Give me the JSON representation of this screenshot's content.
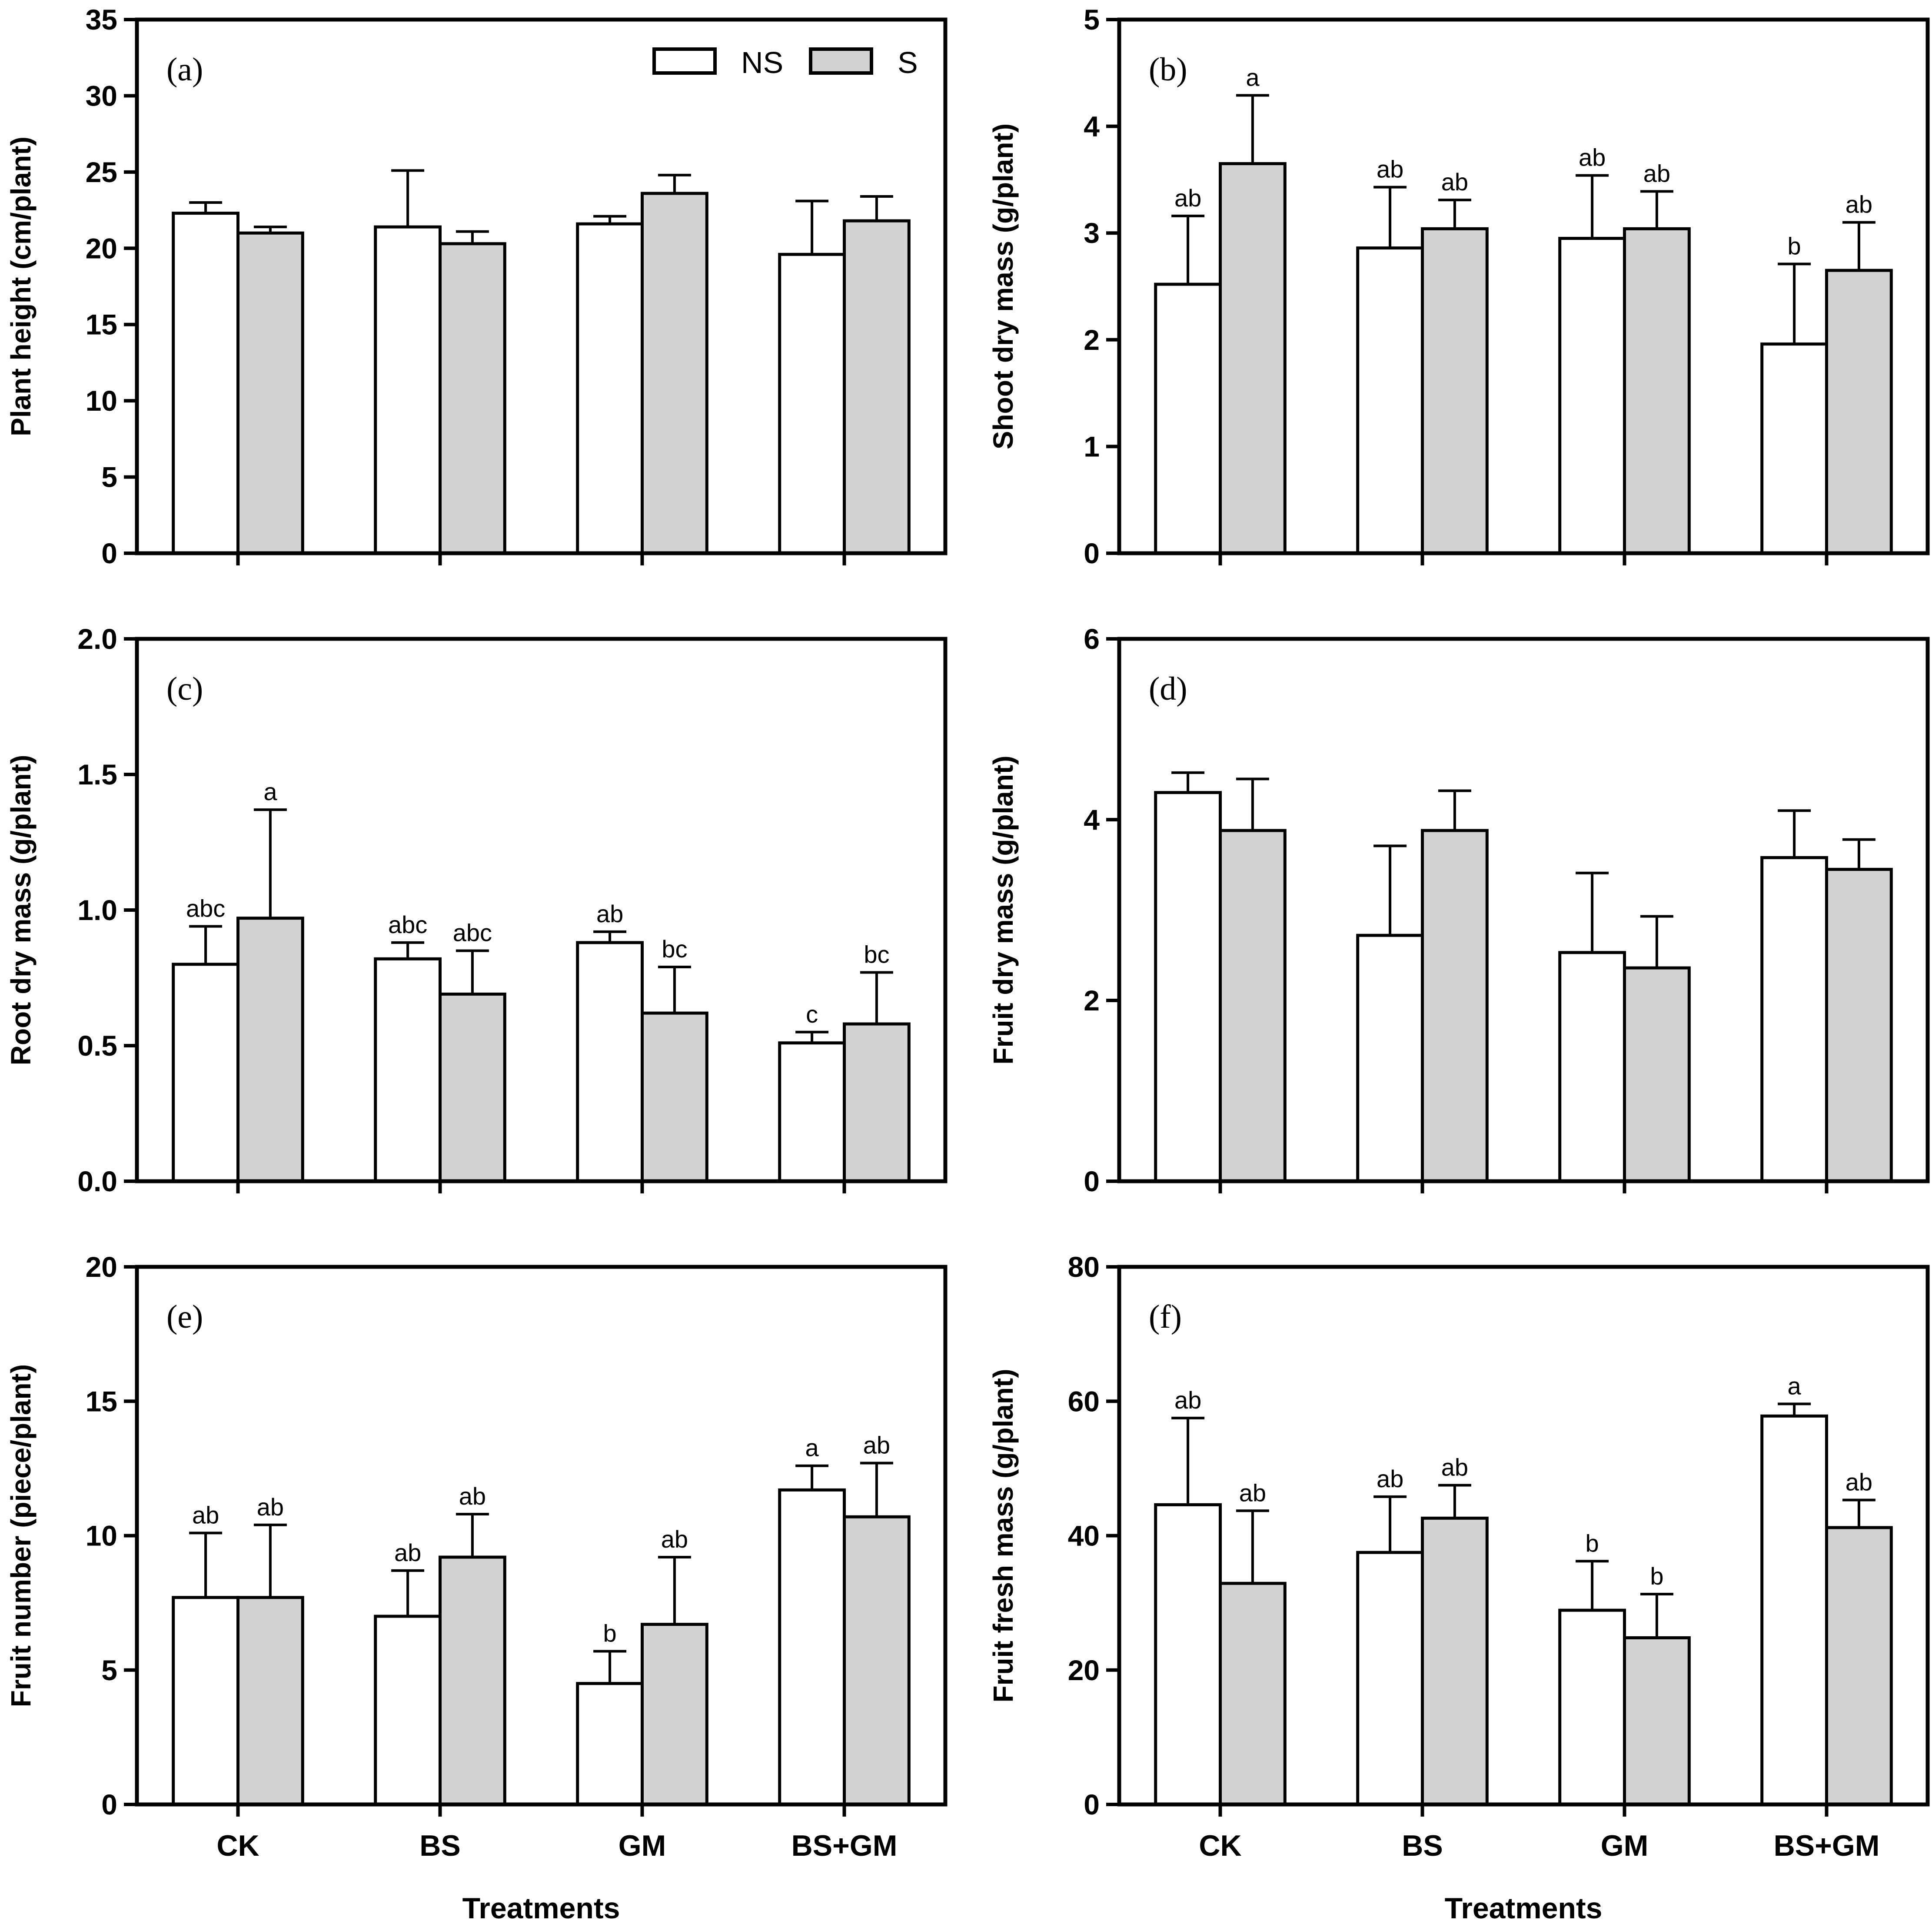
{
  "colors": {
    "ns_fill": "#ffffff",
    "s_fill": "#d3d3d3",
    "stroke": "#000000"
  },
  "legend": {
    "ns": "NS",
    "s": "S"
  },
  "chart_data": [
    {
      "type": "bar",
      "panel": "(a)",
      "categories": [
        "CK",
        "BS",
        "GM",
        "BS+GM"
      ],
      "ylabel": "Plant height (cm/plant)",
      "xlabel": "",
      "ylim": [
        0,
        35
      ],
      "yticks": [
        "0",
        "5",
        "10",
        "15",
        "20",
        "25",
        "30",
        "35"
      ],
      "show_xticks": false,
      "series": [
        {
          "name": "NS",
          "values": [
            22.3,
            21.4,
            21.6,
            19.6
          ],
          "errors": [
            0.7,
            3.7,
            0.5,
            3.5
          ],
          "labels": [
            "",
            "",
            "",
            ""
          ]
        },
        {
          "name": "S",
          "values": [
            21.0,
            20.3,
            23.6,
            21.8
          ],
          "errors": [
            0.4,
            0.8,
            1.2,
            1.6
          ],
          "labels": [
            "",
            "",
            "",
            ""
          ]
        }
      ]
    },
    {
      "type": "bar",
      "panel": "(b)",
      "categories": [
        "CK",
        "BS",
        "GM",
        "BS+GM"
      ],
      "ylabel": "Shoot dry mass (g/plant)",
      "xlabel": "",
      "ylim": [
        0,
        5
      ],
      "yticks": [
        "0",
        "1",
        "2",
        "3",
        "4",
        "5"
      ],
      "show_xticks": false,
      "series": [
        {
          "name": "NS",
          "values": [
            2.52,
            2.86,
            2.95,
            1.96
          ],
          "errors": [
            0.64,
            0.57,
            0.59,
            0.75
          ],
          "labels": [
            "ab",
            "ab",
            "ab",
            "b"
          ]
        },
        {
          "name": "S",
          "values": [
            3.65,
            3.04,
            3.04,
            2.65
          ],
          "errors": [
            0.64,
            0.27,
            0.35,
            0.45
          ],
          "labels": [
            "a",
            "ab",
            "ab",
            "ab"
          ]
        }
      ]
    },
    {
      "type": "bar",
      "panel": "(c)",
      "categories": [
        "CK",
        "BS",
        "GM",
        "BS+GM"
      ],
      "ylabel": "Root dry mass (g/plant)",
      "xlabel": "",
      "ylim": [
        0,
        2.0
      ],
      "yticks": [
        "0.0",
        "0.5",
        "1.0",
        "1.5",
        "2.0"
      ],
      "show_xticks": false,
      "series": [
        {
          "name": "NS",
          "values": [
            0.8,
            0.82,
            0.88,
            0.51
          ],
          "errors": [
            0.14,
            0.06,
            0.04,
            0.04
          ],
          "labels": [
            "abc",
            "abc",
            "ab",
            "c"
          ]
        },
        {
          "name": "S",
          "values": [
            0.97,
            0.69,
            0.62,
            0.58
          ],
          "errors": [
            0.4,
            0.16,
            0.17,
            0.19
          ],
          "labels": [
            "a",
            "abc",
            "bc",
            "bc"
          ]
        }
      ]
    },
    {
      "type": "bar",
      "panel": "(d)",
      "categories": [
        "CK",
        "BS",
        "GM",
        "BS+GM"
      ],
      "ylabel": "Fruit dry mass (g/plant)",
      "xlabel": "",
      "ylim": [
        0,
        6
      ],
      "yticks": [
        "0",
        "2",
        "4",
        "6"
      ],
      "show_xticks": false,
      "series": [
        {
          "name": "NS",
          "values": [
            4.3,
            2.72,
            2.53,
            3.58
          ],
          "errors": [
            0.22,
            0.99,
            0.88,
            0.52
          ],
          "labels": [
            "",
            "",
            "",
            ""
          ]
        },
        {
          "name": "S",
          "values": [
            3.88,
            3.88,
            2.36,
            3.45
          ],
          "errors": [
            0.57,
            0.44,
            0.57,
            0.33
          ],
          "labels": [
            "",
            "",
            "",
            ""
          ]
        }
      ]
    },
    {
      "type": "bar",
      "panel": "(e)",
      "categories": [
        "CK",
        "BS",
        "GM",
        "BS+GM"
      ],
      "ylabel": "Fruit number (piece/plant)",
      "xlabel": "Treatments",
      "ylim": [
        0,
        20
      ],
      "yticks": [
        "0",
        "5",
        "10",
        "15",
        "20"
      ],
      "show_xticks": true,
      "series": [
        {
          "name": "NS",
          "values": [
            7.7,
            7.0,
            4.5,
            11.7
          ],
          "errors": [
            2.4,
            1.7,
            1.2,
            0.9
          ],
          "labels": [
            "ab",
            "ab",
            "b",
            "a"
          ]
        },
        {
          "name": "S",
          "values": [
            7.7,
            9.2,
            6.7,
            10.7
          ],
          "errors": [
            2.7,
            1.6,
            2.5,
            2.0
          ],
          "labels": [
            "ab",
            "ab",
            "ab",
            "ab"
          ]
        }
      ]
    },
    {
      "type": "bar",
      "panel": "(f)",
      "categories": [
        "CK",
        "BS",
        "GM",
        "BS+GM"
      ],
      "ylabel": "Fruit fresh mass (g/plant)",
      "xlabel": "Treatments",
      "ylim": [
        0,
        80
      ],
      "yticks": [
        "0",
        "20",
        "40",
        "60",
        "80"
      ],
      "show_xticks": true,
      "series": [
        {
          "name": "NS",
          "values": [
            44.6,
            37.5,
            28.9,
            57.8
          ],
          "errors": [
            12.9,
            8.3,
            7.3,
            1.8
          ],
          "labels": [
            "ab",
            "ab",
            "b",
            "a"
          ]
        },
        {
          "name": "S",
          "values": [
            32.9,
            42.6,
            24.8,
            41.2
          ],
          "errors": [
            10.8,
            4.9,
            6.5,
            4.1
          ],
          "labels": [
            "ab",
            "ab",
            "b",
            "ab"
          ]
        }
      ]
    }
  ]
}
